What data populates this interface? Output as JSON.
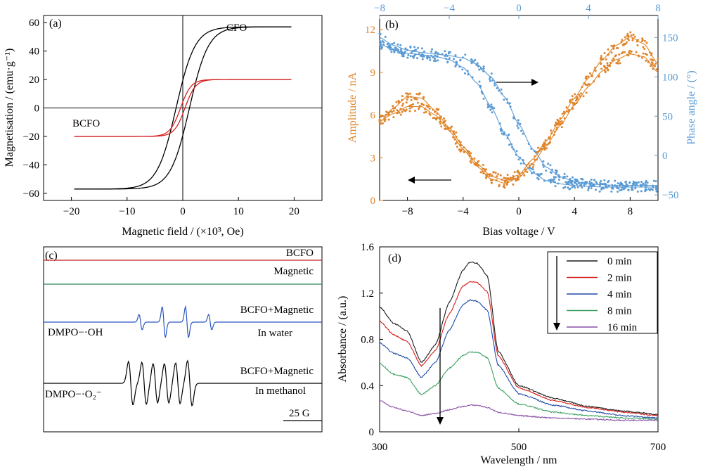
{
  "chart_data": [
    {
      "panel": "(a)",
      "type": "line",
      "xlabel": "Magnetic field / (×10³, Oe)",
      "ylabel": "Magnetisation / (emu·g⁻¹)",
      "xlim": [
        -25,
        25
      ],
      "ylim": [
        -65,
        65
      ],
      "xticks": [
        -20,
        -10,
        0,
        10,
        20
      ],
      "yticks": [
        -60,
        -40,
        -20,
        0,
        20,
        40,
        60
      ],
      "xtick_labels": [
        "−20",
        "−10",
        "0",
        "10",
        "20"
      ],
      "ytick_labels": [
        "−60",
        "−40",
        "−20",
        "0",
        "20",
        "40",
        "60"
      ],
      "series": [
        {
          "name": "CFO",
          "color": "#000000",
          "ms": 57,
          "hc": 1.2,
          "width": 3.4,
          "xmin": -19.5,
          "xmax": 19.5
        },
        {
          "name": "BCFO",
          "color": "#d42020",
          "ms": 20,
          "hc": 0.4,
          "width": 1.9,
          "xmin": -19.5,
          "xmax": 19.5
        }
      ]
    },
    {
      "panel": "(b)",
      "type": "scatter",
      "xlabel": "Bias voltage / V",
      "ylabel_left": "Amplitude / nA",
      "ylabel_right": "Phase angle / (°)",
      "xlim": [
        -10,
        10
      ],
      "xlim_top": [
        -8,
        8
      ],
      "ylim_left": [
        0,
        13
      ],
      "ylim_right": [
        -57,
        178
      ],
      "xticks": [
        -8,
        -4,
        0,
        4,
        8
      ],
      "xticks_top": [
        -8,
        -4,
        0,
        4,
        8
      ],
      "xtick_labels": [
        "−8",
        "−4",
        "0",
        "4",
        "8"
      ],
      "xtick_labels_top": [
        "−8",
        "−4",
        "0",
        "4",
        "8"
      ],
      "yticks_left": [
        0,
        3,
        6,
        9,
        12
      ],
      "yticks_right": [
        -50,
        0,
        50,
        100,
        150
      ],
      "ytick_labels_right": [
        "−50",
        "0",
        "50",
        "100",
        "150"
      ],
      "colors": {
        "amplitude": "#e0852a",
        "phase": "#5b9bd5"
      },
      "amplitude_series": [
        {
          "x": [
            -10,
            -9,
            -8,
            -7,
            -6,
            -5,
            -4,
            -3,
            -2,
            -1,
            0,
            1,
            2,
            3,
            4,
            5,
            6,
            7,
            8,
            9,
            10
          ],
          "y": [
            5.5,
            6.5,
            7.3,
            7.2,
            6.3,
            5.1,
            3.8,
            2.6,
            1.7,
            1.4,
            1.8,
            2.9,
            4.2,
            5.7,
            7.2,
            8.6,
            9.9,
            10.9,
            11.5,
            11.0,
            9.6
          ]
        },
        {
          "x": [
            -10,
            -9,
            -8,
            -7,
            -6,
            -5,
            -4,
            -3,
            -2,
            -1,
            0,
            1,
            2,
            3,
            4,
            5,
            6,
            7,
            8,
            9,
            10
          ],
          "y": [
            5.6,
            6.1,
            6.6,
            6.6,
            6.0,
            4.9,
            3.6,
            2.4,
            1.5,
            1.2,
            1.6,
            2.6,
            3.9,
            5.3,
            6.7,
            8.0,
            9.1,
            9.9,
            10.3,
            10.1,
            9.0
          ]
        }
      ],
      "phase_series": [
        {
          "x": [
            -10,
            -9,
            -8,
            -7,
            -6,
            -5,
            -4,
            -3,
            -2,
            -1,
            0,
            1,
            2,
            3,
            4,
            5,
            6,
            7,
            8,
            9,
            10
          ],
          "y": [
            150,
            140,
            134,
            131,
            129,
            127,
            124,
            116,
            100,
            74,
            40,
            8,
            -15,
            -27,
            -33,
            -36,
            -37,
            -38,
            -38,
            -38,
            -38
          ]
        },
        {
          "x": [
            -10,
            -9,
            -8,
            -7,
            -6,
            -5,
            -4,
            -3,
            -2,
            -1,
            0,
            1,
            2,
            3,
            4,
            5,
            6,
            7,
            8,
            9,
            10
          ],
          "y": [
            142,
            134,
            130,
            128,
            126,
            122,
            112,
            92,
            62,
            28,
            -2,
            -22,
            -32,
            -36,
            -38,
            -39,
            -40,
            -40,
            -40,
            -40,
            -40
          ]
        }
      ]
    },
    {
      "panel": "(c)",
      "type": "line",
      "traces": [
        {
          "label": "BCFO",
          "sublabel": "",
          "color": "#c02020",
          "kind": "flat"
        },
        {
          "label": "Magnetic",
          "sublabel": "",
          "color": "#2e8b57",
          "kind": "flat"
        },
        {
          "label": "BCFO+Magnetic",
          "sublabel": "In water",
          "species": "DMPO−·OH",
          "color": "#2a55c0",
          "kind": "quartet",
          "relative_intensities": [
            1,
            2,
            2,
            1
          ]
        },
        {
          "label": "BCFO+Magnetic",
          "sublabel": "In methanol",
          "species": "DMPO−·O₂⁻",
          "color": "#000000",
          "kind": "sextet"
        }
      ],
      "scale_bar": "25 G"
    },
    {
      "panel": "(d)",
      "type": "line",
      "xlabel": "Wavelength / nm",
      "ylabel": "Absorbance / (a.u.)",
      "xlim": [
        300,
        700
      ],
      "ylim": [
        0,
        1.6
      ],
      "xticks": [
        300,
        500,
        700
      ],
      "yticks": [
        0,
        0.4,
        0.8,
        1.2,
        1.6
      ],
      "xtick_labels": [
        "300",
        "500",
        "700"
      ],
      "ytick_labels": [
        "0",
        "0.4",
        "0.8",
        "1.2",
        "1.6"
      ],
      "series": [
        {
          "name": "0 min",
          "color": "#1a1a1a",
          "x": [
            300,
            320,
            340,
            360,
            380,
            400,
            420,
            430,
            440,
            455,
            470,
            500,
            550,
            600,
            650,
            700
          ],
          "y": [
            1.08,
            0.94,
            0.87,
            0.6,
            0.75,
            1.12,
            1.4,
            1.47,
            1.46,
            1.35,
            0.7,
            0.4,
            0.29,
            0.22,
            0.18,
            0.15
          ]
        },
        {
          "name": "2 min",
          "color": "#d42020",
          "x": [
            300,
            320,
            340,
            360,
            380,
            400,
            420,
            430,
            440,
            455,
            470,
            500,
            550,
            600,
            650,
            700
          ],
          "y": [
            0.96,
            0.84,
            0.78,
            0.57,
            0.7,
            1.02,
            1.26,
            1.3,
            1.29,
            1.21,
            0.66,
            0.38,
            0.27,
            0.21,
            0.17,
            0.14
          ]
        },
        {
          "name": "4 min",
          "color": "#1f4aa8",
          "x": [
            300,
            320,
            340,
            360,
            380,
            400,
            420,
            430,
            440,
            455,
            470,
            500,
            550,
            600,
            650,
            700
          ],
          "y": [
            0.77,
            0.68,
            0.64,
            0.47,
            0.6,
            0.88,
            1.1,
            1.14,
            1.13,
            1.05,
            0.58,
            0.33,
            0.23,
            0.18,
            0.14,
            0.12
          ]
        },
        {
          "name": "8 min",
          "color": "#3aa060",
          "x": [
            300,
            320,
            340,
            360,
            380,
            400,
            420,
            430,
            440,
            455,
            470,
            500,
            550,
            600,
            650,
            700
          ],
          "y": [
            0.59,
            0.5,
            0.47,
            0.32,
            0.4,
            0.55,
            0.66,
            0.69,
            0.69,
            0.64,
            0.38,
            0.24,
            0.17,
            0.14,
            0.12,
            0.11
          ]
        },
        {
          "name": "16 min",
          "color": "#8a4fa8",
          "x": [
            300,
            320,
            340,
            360,
            380,
            400,
            420,
            430,
            440,
            455,
            470,
            500,
            550,
            600,
            650,
            700
          ],
          "y": [
            0.27,
            0.21,
            0.18,
            0.14,
            0.16,
            0.19,
            0.22,
            0.23,
            0.23,
            0.21,
            0.17,
            0.14,
            0.12,
            0.11,
            0.1,
            0.1
          ]
        }
      ]
    }
  ]
}
